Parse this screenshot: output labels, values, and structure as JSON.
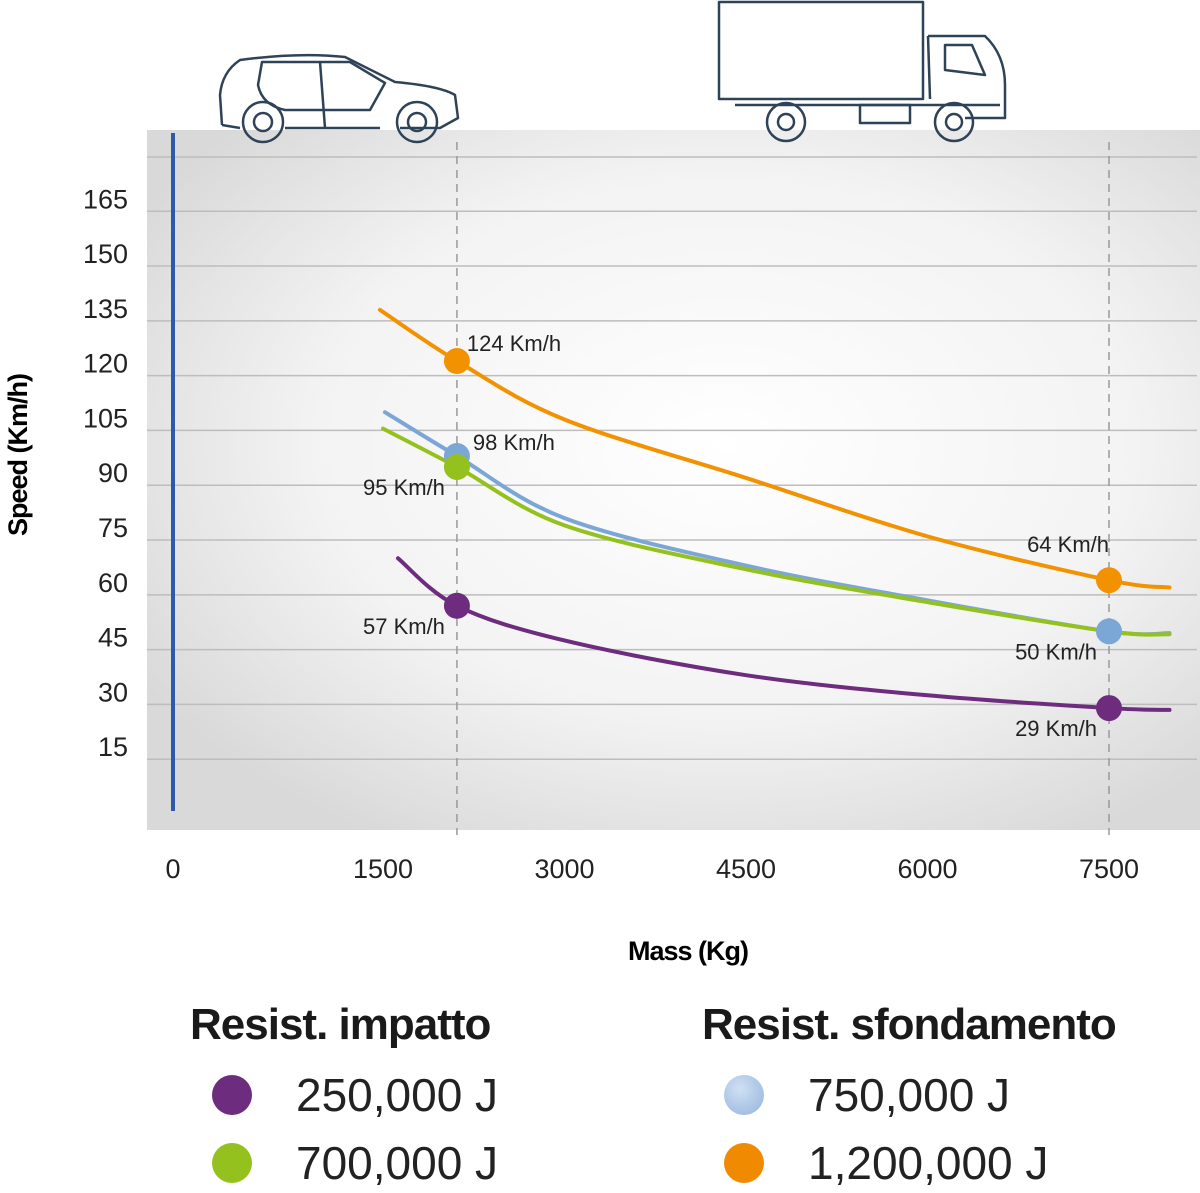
{
  "chart_data": {
    "type": "line",
    "xlabel": "Mass (Kg)",
    "ylabel": "Speed (Km/h)",
    "xlim": [
      0,
      8000
    ],
    "ylim": [
      0,
      180
    ],
    "x_ticks": [
      0,
      1500,
      3000,
      4500,
      6000,
      7500
    ],
    "y_ticks": [
      15,
      30,
      45,
      60,
      75,
      90,
      105,
      120,
      135,
      150,
      165
    ],
    "grid": "horizontal",
    "reference_lines": [
      {
        "x": 2111,
        "icon": "car-icon"
      },
      {
        "x": 7500,
        "icon": "truck-icon"
      }
    ],
    "series": [
      {
        "name": "1,200,000 J",
        "color": "#f39200",
        "x": [
          1475,
          2111,
          3000,
          4500,
          6000,
          7500,
          8000
        ],
        "y": [
          138,
          124,
          108,
          92,
          76,
          64,
          62
        ],
        "labels": [
          {
            "x": 2111,
            "y": 124,
            "text": "124 Km/h",
            "pos": "right-up"
          },
          {
            "x": 7500,
            "y": 64,
            "text": "64 Km/h",
            "pos": "left-up"
          }
        ]
      },
      {
        "name": "750,000 J",
        "color": "#7ba7d7",
        "x": [
          1516,
          2111,
          3000,
          4500,
          6000,
          7500,
          8000
        ],
        "y": [
          110,
          98,
          81,
          68,
          58.5,
          50,
          49.5
        ],
        "labels": [
          {
            "x": 2111,
            "y": 98,
            "text": "98 Km/h",
            "pos": "right"
          },
          {
            "x": 7500,
            "y": 50,
            "text": "50 Km/h",
            "pos": "left-down"
          }
        ]
      },
      {
        "name": "700,000 J",
        "color": "#95c11f",
        "x": [
          1500,
          2111,
          3000,
          4500,
          6000,
          7500,
          8000
        ],
        "y": [
          105.5,
          95,
          79,
          67,
          58,
          50,
          49.2
        ],
        "labels": [
          {
            "x": 2111,
            "y": 95,
            "text": "95 Km/h",
            "pos": "left-down"
          }
        ]
      },
      {
        "name": "250,000 J",
        "color": "#6e2c7e",
        "x": [
          1624,
          2111,
          3000,
          4500,
          6000,
          7500,
          8000
        ],
        "y": [
          70,
          57,
          47.5,
          38,
          32.5,
          29,
          28.5
        ],
        "labels": [
          {
            "x": 2111,
            "y": 57,
            "text": "57 Km/h",
            "pos": "left-down"
          },
          {
            "x": 7500,
            "y": 29,
            "text": "29 Km/h",
            "pos": "left-down"
          }
        ]
      }
    ]
  },
  "legend": {
    "groups": [
      {
        "title": "Resist. impatto",
        "items": [
          {
            "label": "250,000 J",
            "color": "#6e2c7e"
          },
          {
            "label": "700,000 J",
            "color": "#95c11f"
          }
        ]
      },
      {
        "title": "Resist. sfondamento",
        "items": [
          {
            "label": "750,000 J",
            "color": "#a9c4e6"
          },
          {
            "label": "1,200,000 J",
            "color": "#f08a00"
          }
        ]
      }
    ]
  }
}
